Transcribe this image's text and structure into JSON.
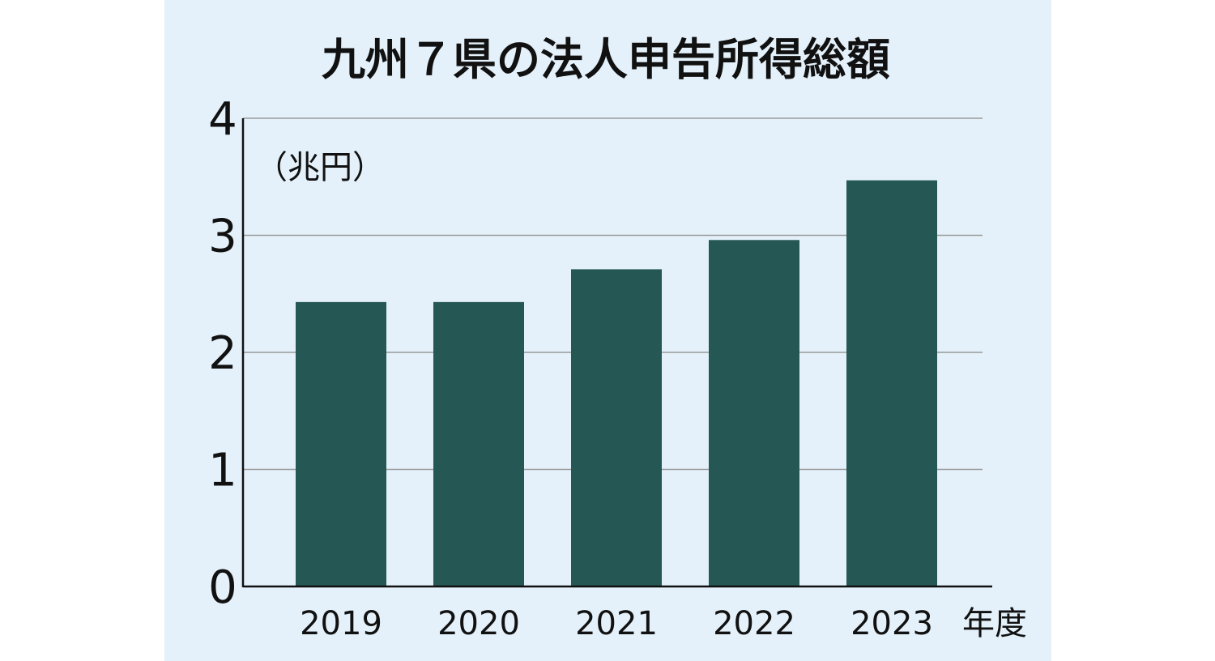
{
  "colors": {
    "panel_background": "#e4f1fa",
    "bar": "#255855",
    "gridline": "#9a9a9a",
    "axis": "#111111",
    "text": "#111111"
  },
  "chart_data": {
    "type": "bar",
    "title": "九州７県の法人申告所得総額",
    "unit_label": "（兆円）",
    "x_unit_label": "年度",
    "categories": [
      "2019",
      "2020",
      "2021",
      "2022",
      "2023"
    ],
    "values": [
      2.43,
      2.43,
      2.71,
      2.96,
      3.47
    ],
    "ylim": [
      0,
      4
    ],
    "yticks": [
      "0",
      "1",
      "2",
      "3",
      "4"
    ],
    "grid": true,
    "legend": "none"
  }
}
